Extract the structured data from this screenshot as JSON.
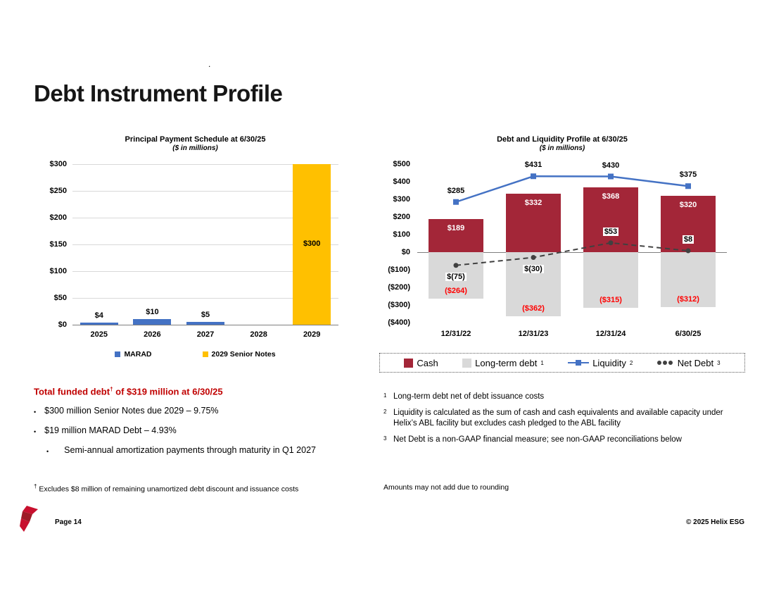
{
  "slide": {
    "title": "Debt Instrument Profile",
    "stray_mark": ".",
    "page_label": "Page 14",
    "copyright": "© 2025 Helix ESG"
  },
  "left_text": {
    "heading": {
      "pre": "Total funded debt",
      "sup": "†",
      "post": " of $319 million at 6/30/25"
    },
    "bullets": [
      {
        "marker": "•",
        "text": "$300 million Senior Notes due 2029 – 9.75%"
      },
      {
        "marker": "•",
        "text": "$19 million MARAD Debt – 4.93%"
      },
      {
        "marker": "•",
        "text": "Semi-annual amortization payments through maturity in Q1 2027"
      }
    ],
    "footnote": {
      "marker": "†",
      "text": "Excludes $8 million of remaining unamortized debt discount and issuance costs"
    }
  },
  "right_text": {
    "footnotes": [
      {
        "marker": "1",
        "text": "Long-term debt net of debt issuance costs"
      },
      {
        "marker": "2",
        "text": "Liquidity is calculated as the sum of cash and cash equivalents and available capacity under Helix’s ABL facility but excludes cash pledged to the ABL facility"
      },
      {
        "marker": "3",
        "text": "Net Debt is a non-GAAP financial measure; see non-GAAP reconciliations below"
      }
    ],
    "rounding_note": "Amounts may not add due to rounding"
  },
  "chart_data": [
    {
      "type": "bar",
      "title": "Principal Payment Schedule at 6/30/25",
      "subtitle": "($ in millions)",
      "categories": [
        "2025",
        "2026",
        "2027",
        "2028",
        "2029"
      ],
      "series": [
        {
          "name": "MARAD",
          "color": "#4472C4",
          "values": [
            4,
            10,
            5,
            null,
            null
          ],
          "labels": [
            "$4",
            "$10",
            "$5",
            "",
            ""
          ]
        },
        {
          "name": "2029 Senior Notes",
          "color": "#FFC000",
          "values": [
            null,
            null,
            null,
            null,
            300
          ],
          "labels": [
            "",
            "",
            "",
            "",
            "$300"
          ]
        }
      ],
      "ylim": [
        0,
        300
      ],
      "ytick_step": 50,
      "ytick_labels": [
        "$0",
        "$50",
        "$100",
        "$150",
        "$200",
        "$250",
        "$300"
      ],
      "grid": true,
      "legend_position": "bottom"
    },
    {
      "type": "bar-line-combo",
      "title": "Debt and Liquidity Profile at 6/30/25",
      "subtitle": "($ in millions)",
      "categories": [
        "12/31/22",
        "12/31/23",
        "12/31/24",
        "6/30/25"
      ],
      "bar_series": [
        {
          "name": "Cash",
          "color": "#A32638",
          "label_color": "#FFFFFF",
          "values": [
            189,
            332,
            368,
            320
          ],
          "labels": [
            "$189",
            "$332",
            "$368",
            "$320"
          ]
        },
        {
          "name": "Long-term debt",
          "legend_sup": "1",
          "color": "#D9D9D9",
          "label_color": "#FF0000",
          "values": [
            -264,
            -362,
            -315,
            -312
          ],
          "labels": [
            "($264)",
            "($362)",
            "($315)",
            "($312)"
          ]
        }
      ],
      "line_series": [
        {
          "name": "Liquidity",
          "legend_sup": "2",
          "color": "#4472C4",
          "style": "solid",
          "marker": "square",
          "label_pos": "above",
          "white_bg": false,
          "values": [
            285,
            431,
            430,
            375
          ],
          "labels": [
            "$285",
            "$431",
            "$430",
            "$375"
          ]
        },
        {
          "name": "Net Debt",
          "legend_sup": "3",
          "color": "#404040",
          "style": "dashed",
          "marker": "circle",
          "label_pos": "auto",
          "white_bg": true,
          "values": [
            -75,
            -30,
            53,
            8
          ],
          "labels": [
            "$(75)",
            "$(30)",
            "$53",
            "$8"
          ]
        }
      ],
      "ylim": [
        -400,
        500
      ],
      "ytick_step": 100,
      "ytick_labels": [
        "($400)",
        "($300)",
        "($200)",
        "($100)",
        "$0",
        "$100",
        "$200",
        "$300",
        "$400",
        "$500"
      ],
      "grid": false,
      "legend_position": "bottom"
    }
  ]
}
